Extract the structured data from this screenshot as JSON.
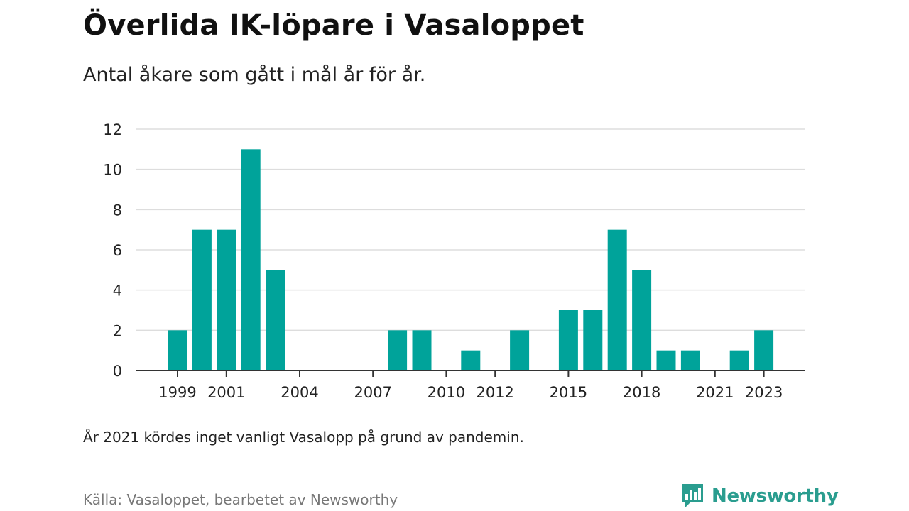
{
  "header": {
    "title": "Överlida IK-löpare i Vasaloppet",
    "subtitle": "Antal åkare som gått i mål år för år."
  },
  "footer": {
    "note": "År 2021 kördes inget vanligt Vasalopp på grund av pandemin.",
    "source": "Källa: Vasaloppet, bearbetet av Newsworthy",
    "brand": "Newsworthy",
    "brand_icon": "newsworthy-logo-icon"
  },
  "colors": {
    "bar": "#00a39a",
    "grid": "#dddddd",
    "axis": "#333333",
    "brand": "#2a9d8f"
  },
  "chart_data": {
    "type": "bar",
    "title": "Överlida IK-löpare i Vasaloppet",
    "subtitle": "Antal åkare som gått i mål år för år.",
    "categories": [
      "1999",
      "2000",
      "2001",
      "2002",
      "2003",
      "2004",
      "2005",
      "2006",
      "2007",
      "2008",
      "2009",
      "2010",
      "2011",
      "2012",
      "2013",
      "2014",
      "2015",
      "2016",
      "2017",
      "2018",
      "2019",
      "2020",
      "2021",
      "2022",
      "2023"
    ],
    "values": [
      2,
      7,
      7,
      11,
      5,
      0,
      0,
      0,
      0,
      2,
      2,
      0,
      1,
      0,
      2,
      0,
      3,
      3,
      7,
      5,
      1,
      1,
      0,
      1,
      2
    ],
    "x_tick_labels": [
      "1999",
      "2001",
      "2004",
      "2007",
      "2010",
      "2012",
      "2015",
      "2018",
      "2021",
      "2023"
    ],
    "y_ticks": [
      0,
      2,
      4,
      6,
      8,
      10,
      12
    ],
    "ylim": [
      0,
      12
    ],
    "grid": true,
    "xlabel": "",
    "ylabel": ""
  }
}
